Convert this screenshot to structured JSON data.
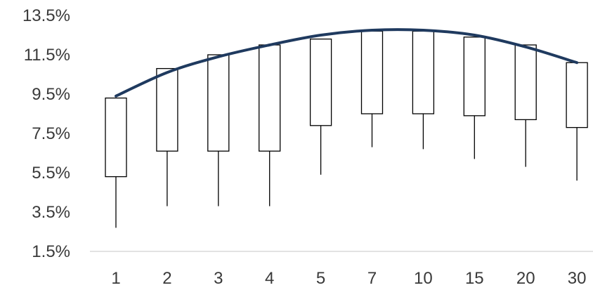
{
  "chart_data": {
    "type": "box",
    "title": "",
    "xlabel": "",
    "ylabel": "",
    "categories": [
      "1",
      "2",
      "3",
      "4",
      "5",
      "7",
      "10",
      "15",
      "20",
      "30"
    ],
    "y_ticks": [
      "1.5%",
      "3.5%",
      "5.5%",
      "7.5%",
      "9.5%",
      "11.5%",
      "13.5%"
    ],
    "ylim": [
      1.5,
      13.5
    ],
    "boxes": [
      {
        "whisker_low": 2.7,
        "box_low": 5.3,
        "box_high": 9.3
      },
      {
        "whisker_low": 3.8,
        "box_low": 6.6,
        "box_high": 10.8
      },
      {
        "whisker_low": 3.8,
        "box_low": 6.6,
        "box_high": 11.5
      },
      {
        "whisker_low": 3.8,
        "box_low": 6.6,
        "box_high": 12.0
      },
      {
        "whisker_low": 5.4,
        "box_low": 7.9,
        "box_high": 12.3
      },
      {
        "whisker_low": 6.8,
        "box_low": 8.5,
        "box_high": 12.7
      },
      {
        "whisker_low": 6.7,
        "box_low": 8.5,
        "box_high": 12.7
      },
      {
        "whisker_low": 6.2,
        "box_low": 8.4,
        "box_high": 12.4
      },
      {
        "whisker_low": 5.8,
        "box_low": 8.2,
        "box_high": 12.0
      },
      {
        "whisker_low": 5.1,
        "box_low": 7.8,
        "box_high": 11.1
      }
    ],
    "curve": [
      9.4,
      10.6,
      11.4,
      12.0,
      12.5,
      12.75,
      12.75,
      12.5,
      11.9,
      11.1
    ],
    "grid": false,
    "colors": {
      "box_stroke": "#000000",
      "box_fill": "#ffffff",
      "curve": "#1f3a5f",
      "axis": "#d9d9d9",
      "text": "#3a3a3a"
    }
  }
}
